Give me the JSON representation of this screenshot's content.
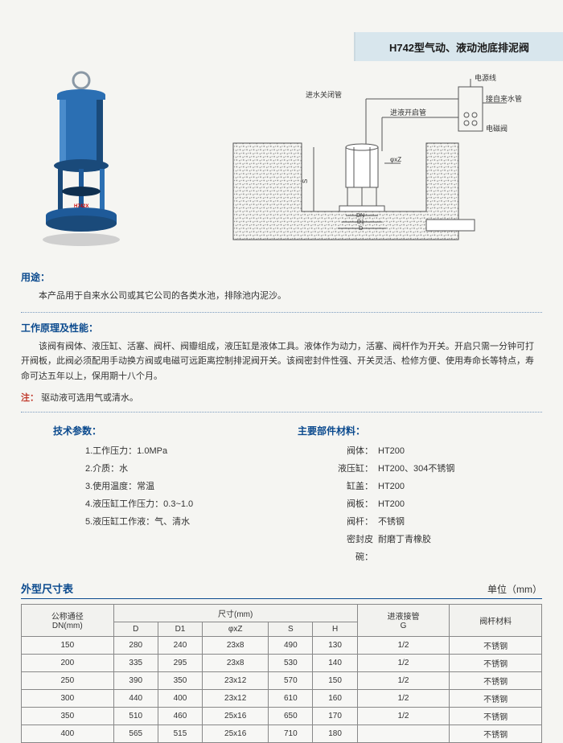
{
  "title": "H742型气动、液动池底排泥阀",
  "sections": {
    "usage": {
      "title": "用途：",
      "text": "本产品用于自来水公司或其它公司的各类水池，排除池内泥沙。"
    },
    "principle": {
      "title": "工作原理及性能：",
      "text": "该阀有阀体、液压缸、活塞、阀杆、阀瓣组成，液压缸是液体工具。液体作为动力，活塞、阀杆作为开关。开启只需一分钟可打开阀板，此阀必须配用手动换方阀或电磁可远距离控制排泥阀开关。该阀密封件性强、开关灵活、检修方便、使用寿命长等特点，寿命可达五年以上，保用期十八个月。"
    },
    "note": {
      "prefix": "注：",
      "text": "驱动液可选用气或清水。"
    },
    "params": {
      "title": "技术参数：",
      "items": [
        "1.工作压力：1.0MPa",
        "2.介质：水",
        "3.使用温度：常温",
        "4.液压缸工作压力：0.3~1.0",
        "5.液压缸工作液：气、清水"
      ]
    },
    "materials": {
      "title": "主要部件材料：",
      "rows": [
        {
          "label": "阀体：",
          "value": "HT200"
        },
        {
          "label": "液压缸：",
          "value": "HT200、304不锈钢"
        },
        {
          "label": "缸盖：",
          "value": "HT200"
        },
        {
          "label": "阀板：",
          "value": "HT200"
        },
        {
          "label": "阀杆：",
          "value": "不锈钢"
        },
        {
          "label": "密封皮碗：",
          "value": "耐磨丁青橡胶"
        }
      ]
    }
  },
  "diagram_labels": {
    "power_line": "电源线",
    "water_supply": "接自来水管",
    "inlet_close": "进水关闭管",
    "inlet_open": "进液开启管",
    "solenoid": "电磁阀",
    "phi_z": "φxZ",
    "dn": "DN",
    "d1": "D1",
    "d": "D",
    "s": "S"
  },
  "dims_table": {
    "title": "外型尺寸表",
    "unit": "单位（mm）",
    "headers": {
      "dn": "公称通径\nDN(mm)",
      "size_group": "尺寸(mm)",
      "d": "D",
      "d1": "D1",
      "phi_z": "φxZ",
      "s": "S",
      "h": "H",
      "g": "进液接管\nG",
      "stem": "阀杆材料"
    },
    "rows": [
      {
        "dn": "150",
        "d": "280",
        "d1": "240",
        "pz": "23x8",
        "s": "490",
        "h": "130",
        "g": "1/2",
        "stem": "不锈钢"
      },
      {
        "dn": "200",
        "d": "335",
        "d1": "295",
        "pz": "23x8",
        "s": "530",
        "h": "140",
        "g": "1/2",
        "stem": "不锈钢"
      },
      {
        "dn": "250",
        "d": "390",
        "d1": "350",
        "pz": "23x12",
        "s": "570",
        "h": "150",
        "g": "1/2",
        "stem": "不锈钢"
      },
      {
        "dn": "300",
        "d": "440",
        "d1": "400",
        "pz": "23x12",
        "s": "610",
        "h": "160",
        "g": "1/2",
        "stem": "不锈钢"
      },
      {
        "dn": "350",
        "d": "510",
        "d1": "460",
        "pz": "25x16",
        "s": "650",
        "h": "170",
        "g": "1/2",
        "stem": "不锈钢"
      },
      {
        "dn": "400",
        "d": "565",
        "d1": "515",
        "pz": "25x16",
        "s": "710",
        "h": "180",
        "g": "",
        "stem": "不锈钢"
      }
    ]
  },
  "colors": {
    "valve_body": "#2b6fb3",
    "valve_dark": "#1a4a7a",
    "flange": "#1e5a99",
    "title_blue": "#0b4a8e",
    "banner_bg": "#d8e6ed",
    "note_red": "#c0392b",
    "diagram_line": "#555",
    "ground_pattern": "#888"
  }
}
